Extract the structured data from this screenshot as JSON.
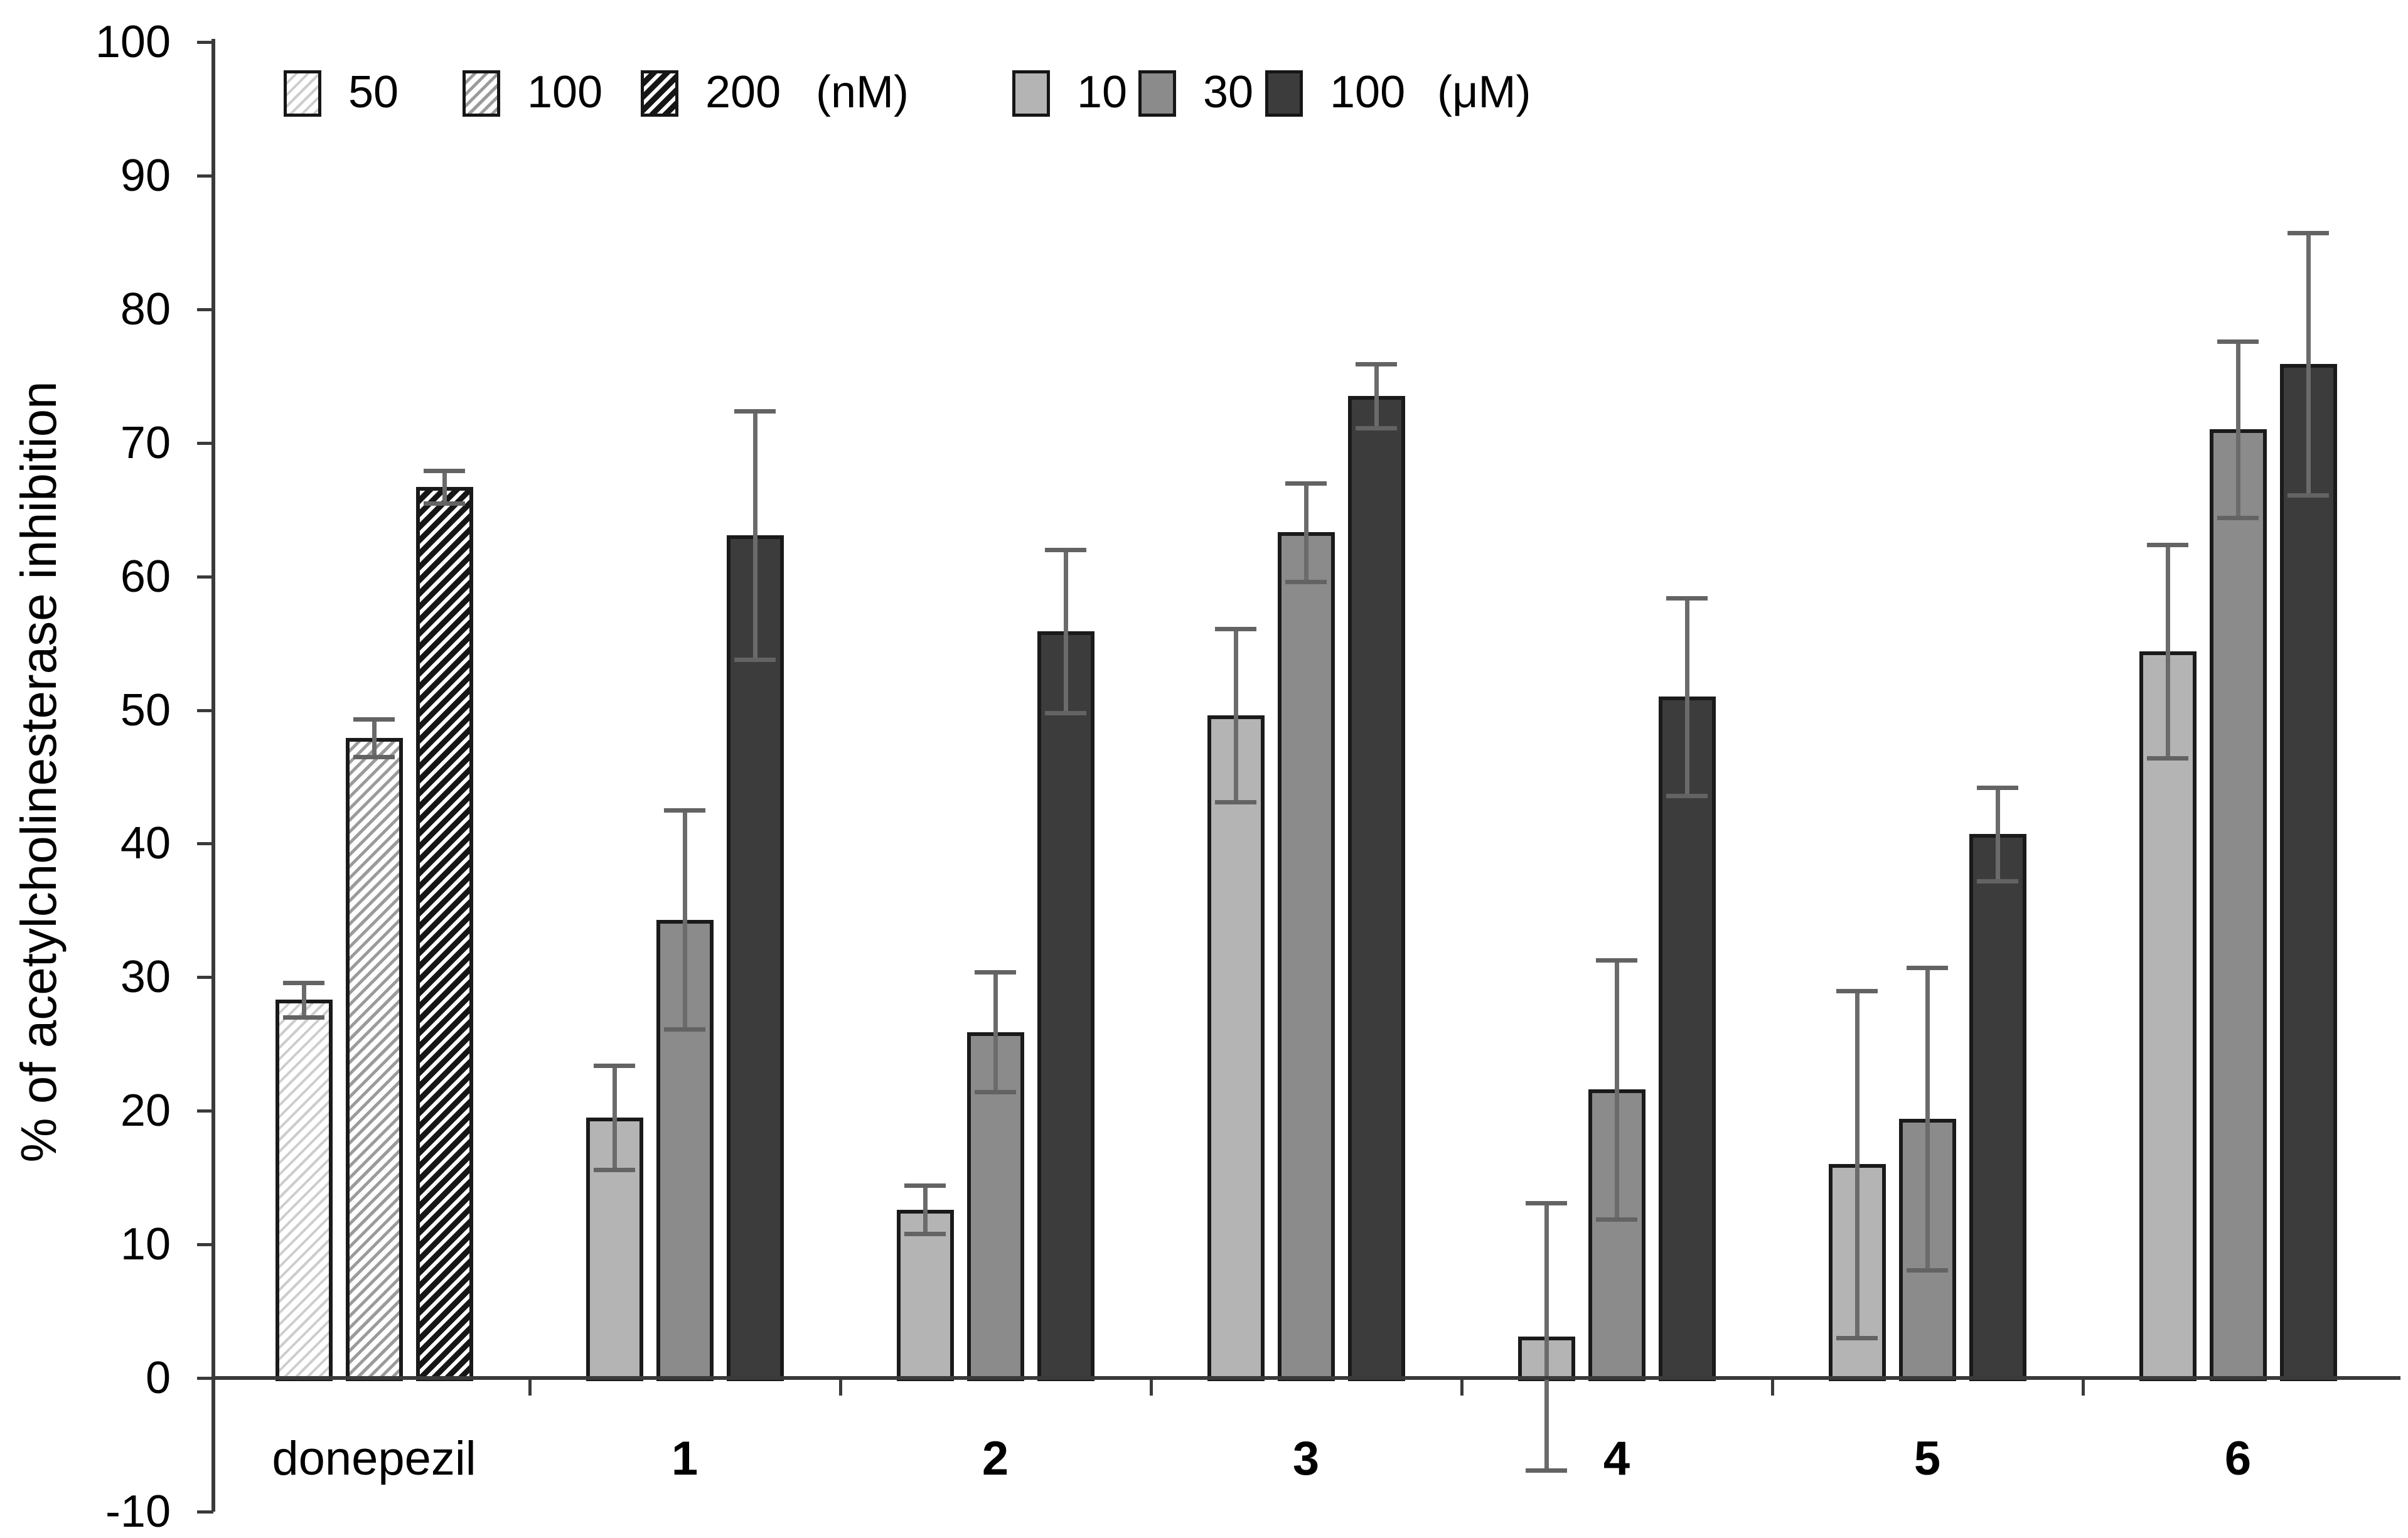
{
  "page": {
    "background": "#ffffff"
  },
  "colors": {
    "axis": "#3a3a3a",
    "text": "#000000",
    "error_bar": "#6b6b6b",
    "bar_border": "#1a1a1a",
    "bar_10uM": "#b4b4b4",
    "bar_30uM": "#8b8b8b",
    "bar_100uM": "#3c3c3c",
    "hatch_light_line": "#cdcdcd",
    "hatch_medium_line": "#9b9b9b",
    "hatch_dense_line": "#161616"
  },
  "legend": {
    "items": [
      {
        "label": "50",
        "style": "hatch-light"
      },
      {
        "label": "100",
        "style": "hatch-medium"
      },
      {
        "label": "200",
        "style": "hatch-dense"
      },
      {
        "label": "(nM)",
        "style": "text"
      },
      {
        "label": "10",
        "style": "solid-light"
      },
      {
        "label": "30",
        "style": "solid-medium"
      },
      {
        "label": "100",
        "style": "solid-dark"
      },
      {
        "label": "(μM)",
        "style": "text"
      }
    ]
  },
  "chart_data": {
    "type": "bar",
    "title": "",
    "xlabel": "",
    "ylabel": "% of acetylcholinesterase inhibition",
    "ylim": [
      -10,
      100
    ],
    "ytick_interval": 10,
    "grid": false,
    "legend_position": "top-left",
    "error_bars": true,
    "categories": [
      "donepezil",
      "1",
      "2",
      "3",
      "4",
      "5",
      "6"
    ],
    "series": [
      {
        "name": "50",
        "unit": "nM",
        "style": "hatch-light",
        "values": [
          28.3,
          null,
          null,
          null,
          null,
          null,
          null
        ],
        "errors": [
          1.3,
          null,
          null,
          null,
          null,
          null,
          null
        ]
      },
      {
        "name": "100",
        "unit": "nM",
        "style": "hatch-medium",
        "values": [
          47.9,
          null,
          null,
          null,
          null,
          null,
          null
        ],
        "errors": [
          1.4,
          null,
          null,
          null,
          null,
          null,
          null
        ]
      },
      {
        "name": "200",
        "unit": "nM",
        "style": "hatch-dense",
        "values": [
          66.7,
          null,
          null,
          null,
          null,
          null,
          null
        ],
        "errors": [
          1.2,
          null,
          null,
          null,
          null,
          null,
          null
        ]
      },
      {
        "name": "10",
        "unit": "μM",
        "style": "solid-light",
        "values": [
          null,
          19.5,
          12.6,
          49.6,
          3.1,
          16.0,
          54.4
        ],
        "errors": [
          null,
          3.9,
          1.8,
          6.5,
          10.0,
          13.0,
          8.0
        ]
      },
      {
        "name": "30",
        "unit": "μM",
        "style": "solid-medium",
        "values": [
          null,
          34.3,
          25.9,
          63.3,
          21.6,
          19.4,
          71.0
        ],
        "errors": [
          null,
          8.2,
          4.5,
          3.7,
          9.7,
          11.3,
          6.6
        ]
      },
      {
        "name": "100",
        "unit": "μM",
        "style": "solid-dark",
        "values": [
          null,
          63.1,
          55.9,
          73.5,
          51.0,
          40.7,
          75.9
        ],
        "errors": [
          null,
          9.3,
          6.1,
          2.4,
          7.4,
          3.5,
          9.8
        ]
      }
    ]
  }
}
